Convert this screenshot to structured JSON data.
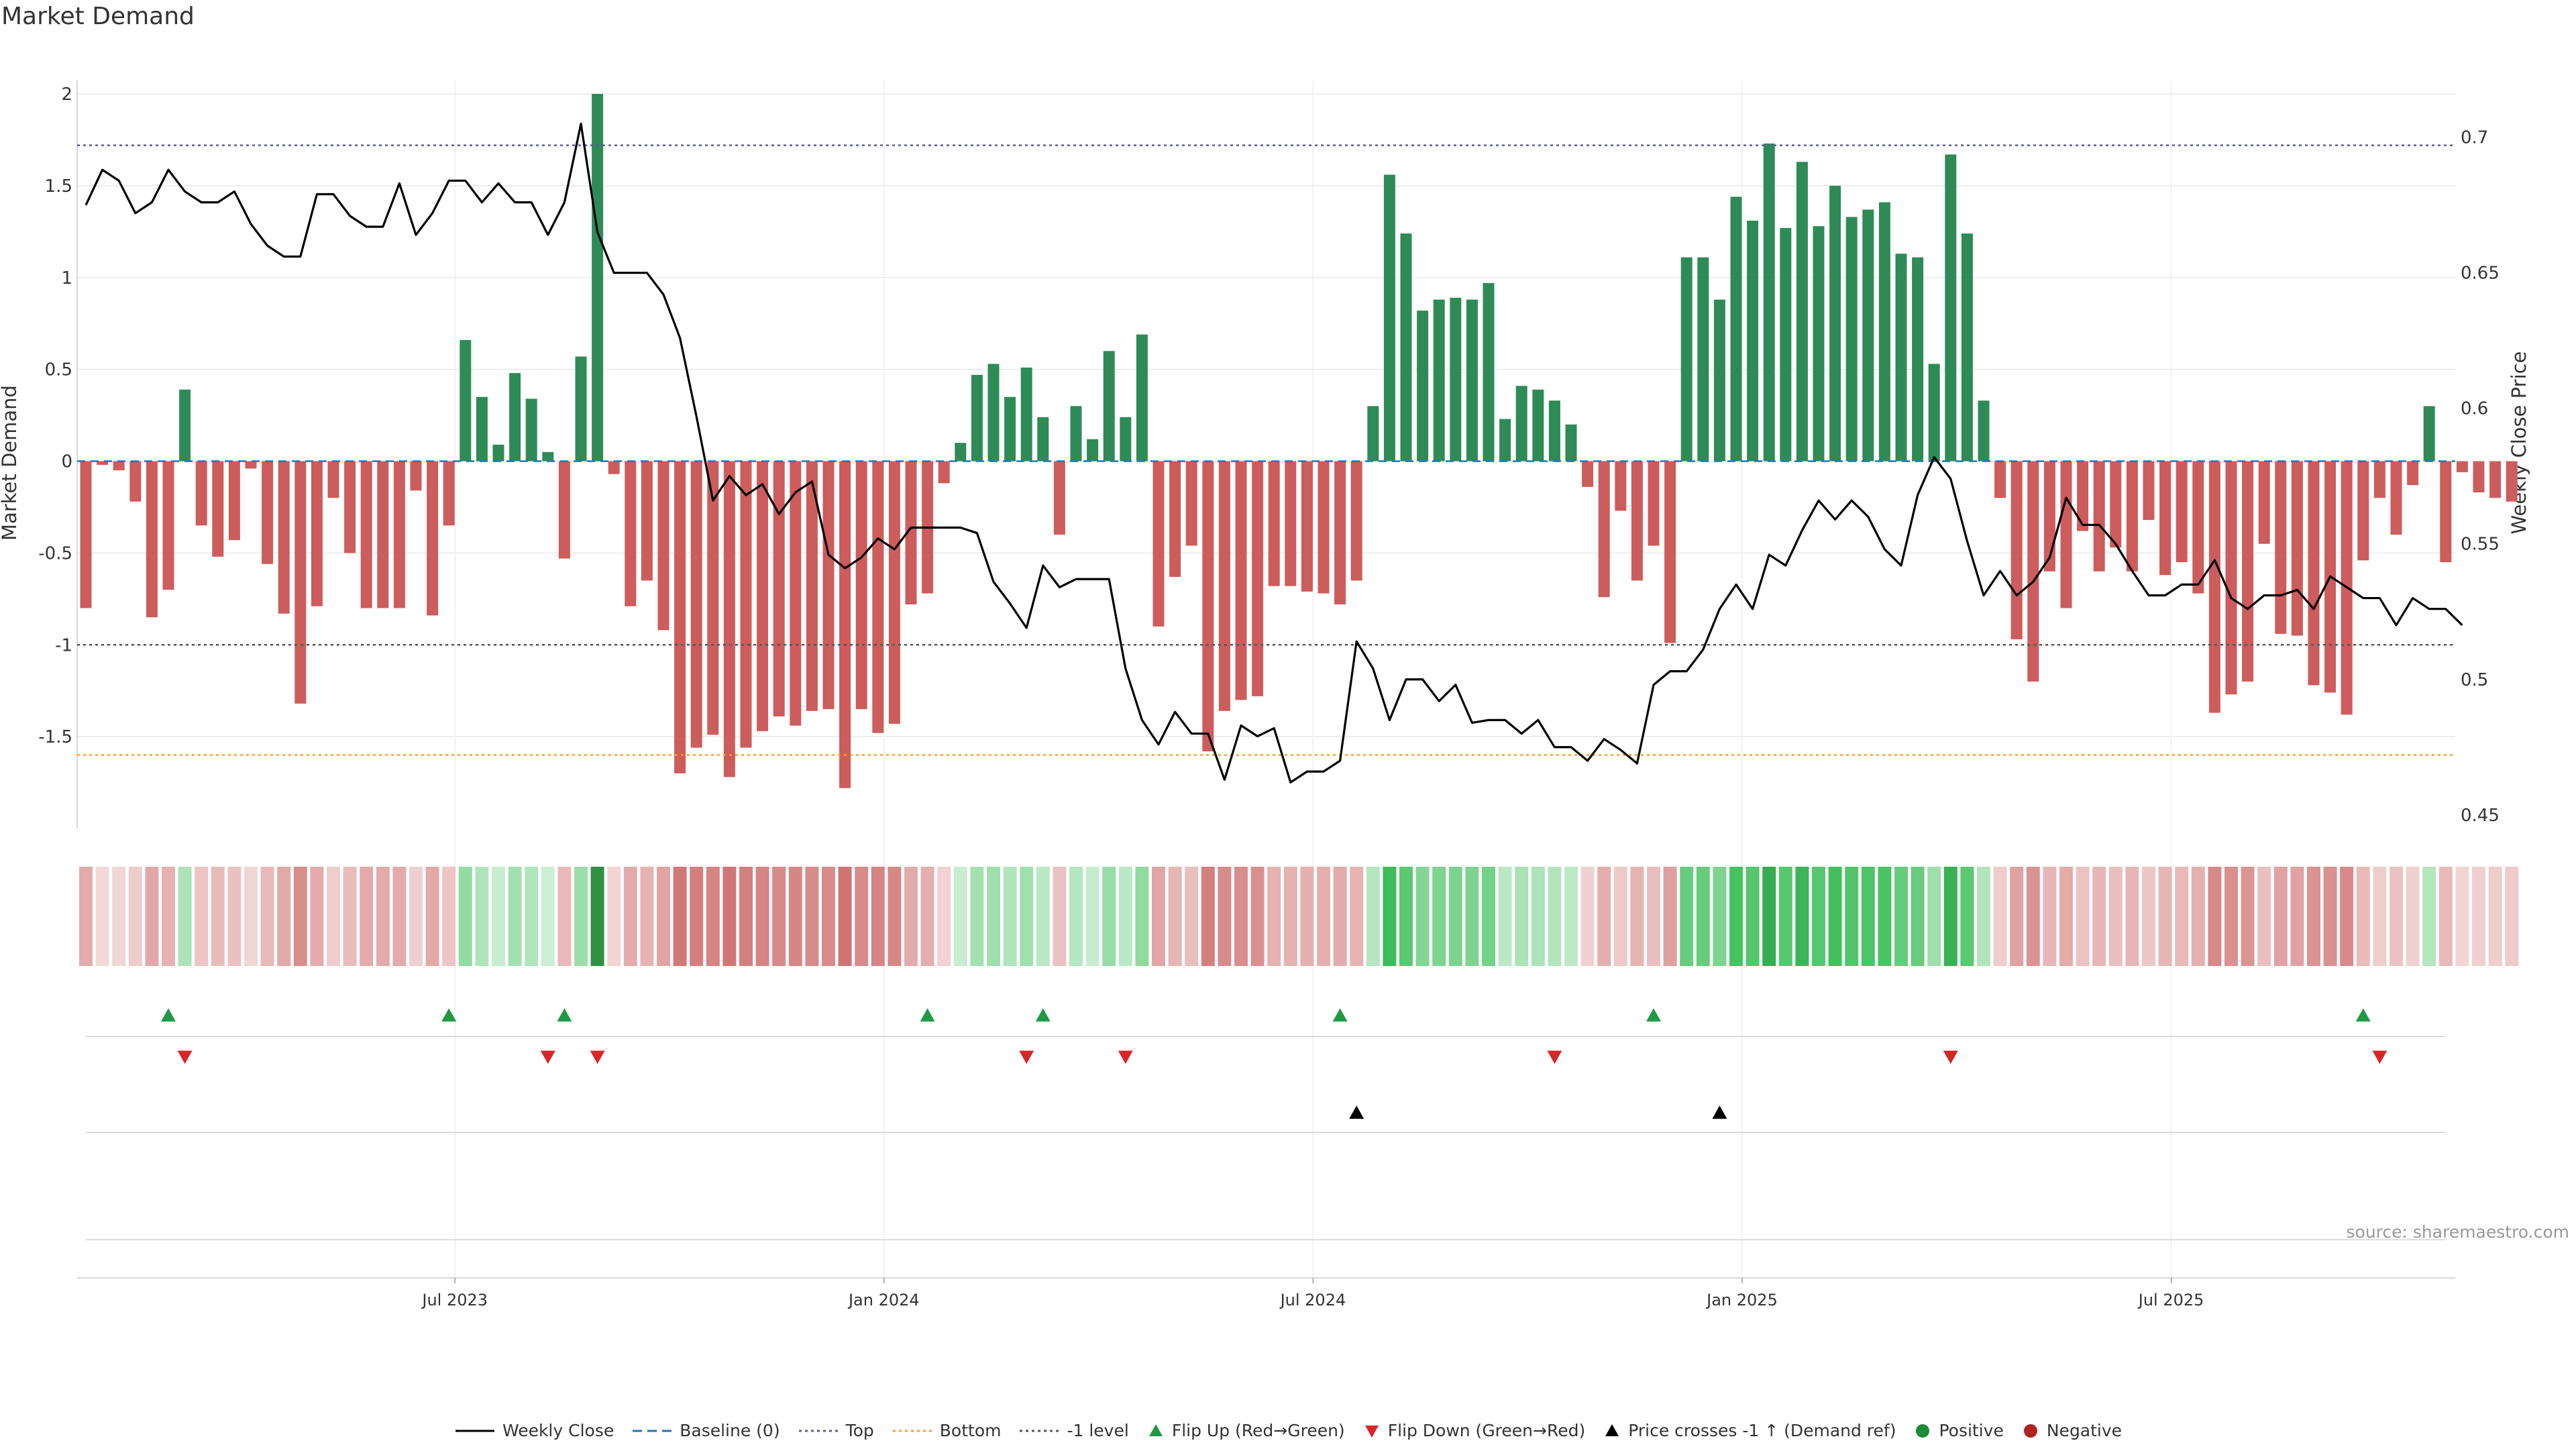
{
  "chart_data": {
    "type": "bar",
    "title": "Market Demand",
    "ylabel": "Market Demand",
    "y2label": "Weekly Close Price",
    "ylim": [
      -2.0,
      2.0
    ],
    "y2lim": [
      0.445,
      0.716
    ],
    "yticks": [
      "2",
      "1.5",
      "1",
      "0.5",
      "0",
      "-0.5",
      "-1",
      "-1.5"
    ],
    "y2ticks": [
      "0.7",
      "0.65",
      "0.6",
      "0.55",
      "0.5",
      "0.45"
    ],
    "x_ticks": [
      {
        "label": "Jul 2023",
        "index": 22
      },
      {
        "label": "Jan 2024",
        "index": 48
      },
      {
        "label": "Jul 2024",
        "index": 74
      },
      {
        "label": "Jan 2025",
        "index": 100
      },
      {
        "label": "Jul 2025",
        "index": 126
      }
    ],
    "reference_lines": {
      "baseline": 0,
      "top": 1.72,
      "bottom": -1.6,
      "minus_one": -1
    },
    "series": [
      {
        "name": "Market Demand",
        "values": [
          -0.8,
          -0.02,
          -0.05,
          -0.22,
          -0.85,
          -0.7,
          0.39,
          -0.35,
          -0.52,
          -0.43,
          -0.04,
          -0.56,
          -0.83,
          -1.32,
          -0.79,
          -0.2,
          -0.5,
          -0.8,
          -0.8,
          -0.8,
          -0.16,
          -0.84,
          -0.35,
          0.66,
          0.35,
          0.09,
          0.48,
          0.34,
          0.05,
          -0.53,
          0.57,
          2.0,
          -0.07,
          -0.79,
          -0.65,
          -0.92,
          -1.7,
          -1.56,
          -1.49,
          -1.72,
          -1.56,
          -1.47,
          -1.39,
          -1.44,
          -1.36,
          -1.35,
          -1.78,
          -1.35,
          -1.48,
          -1.43,
          -0.78,
          -0.72,
          -0.12,
          0.1,
          0.47,
          0.53,
          0.35,
          0.51,
          0.24,
          -0.4,
          0.3,
          0.12,
          0.6,
          0.24,
          0.69,
          -0.9,
          -0.63,
          -0.46,
          -1.58,
          -1.36,
          -1.3,
          -1.28,
          -0.68,
          -0.68,
          -0.71,
          -0.72,
          -0.78,
          -0.65,
          0.3,
          1.56,
          1.24,
          0.82,
          0.88,
          0.89,
          0.88,
          0.97,
          0.23,
          0.41,
          0.39,
          0.33,
          0.2,
          -0.14,
          -0.74,
          -0.27,
          -0.65,
          -0.46,
          -0.99,
          1.11,
          1.11,
          0.88,
          1.44,
          1.31,
          1.73,
          1.27,
          1.63,
          1.28,
          1.5,
          1.33,
          1.37,
          1.41,
          1.13,
          1.11,
          0.53,
          1.67,
          1.24,
          0.33,
          -0.2,
          -0.97,
          -1.2,
          -0.6,
          -0.8,
          -0.38,
          -0.6,
          -0.47,
          -0.6,
          -0.32,
          -0.62,
          -0.55,
          -0.72,
          -1.37,
          -1.27,
          -1.2,
          -0.45,
          -0.94,
          -0.95,
          -1.22,
          -1.26,
          -1.38,
          -0.54,
          -0.2,
          -0.4,
          -0.13,
          0.3,
          -0.55,
          -0.06,
          -0.17,
          -0.2,
          -0.22
        ]
      },
      {
        "name": "Weekly Close",
        "axis": "right",
        "values": [
          0.675,
          0.688,
          0.684,
          0.672,
          0.676,
          0.688,
          0.68,
          0.676,
          0.676,
          0.68,
          0.668,
          0.66,
          0.656,
          0.656,
          0.679,
          0.679,
          0.671,
          0.667,
          0.667,
          0.683,
          0.664,
          0.672,
          0.684,
          0.684,
          0.676,
          0.683,
          0.676,
          0.676,
          0.664,
          0.676,
          0.705,
          0.665,
          0.65,
          0.65,
          0.65,
          0.642,
          0.626,
          0.597,
          0.566,
          0.575,
          0.568,
          0.572,
          0.561,
          0.569,
          0.573,
          0.546,
          0.541,
          0.545,
          0.552,
          0.548,
          0.556,
          0.556,
          0.556,
          0.556,
          0.554,
          0.536,
          0.528,
          0.519,
          0.542,
          0.534,
          0.537,
          0.537,
          0.537,
          0.504,
          0.485,
          0.476,
          0.488,
          0.48,
          0.48,
          0.463,
          0.483,
          0.479,
          0.482,
          0.462,
          0.466,
          0.466,
          0.47,
          0.514,
          0.504,
          0.485,
          0.5,
          0.5,
          0.492,
          0.498,
          0.484,
          0.485,
          0.485,
          0.48,
          0.485,
          0.475,
          0.475,
          0.47,
          0.478,
          0.474,
          0.469,
          0.498,
          0.503,
          0.503,
          0.511,
          0.526,
          0.535,
          0.526,
          0.546,
          0.542,
          0.555,
          0.566,
          0.559,
          0.566,
          0.56,
          0.548,
          0.542,
          0.568,
          0.582,
          0.574,
          0.551,
          0.531,
          0.54,
          0.531,
          0.536,
          0.545,
          0.567,
          0.557,
          0.557,
          0.55,
          0.54,
          0.531,
          0.531,
          0.535,
          0.535,
          0.544,
          0.53,
          0.526,
          0.531,
          0.531,
          0.533,
          0.526,
          0.538,
          0.534,
          0.53,
          0.53,
          0.52,
          0.53,
          0.526,
          0.526,
          0.52
        ]
      }
    ],
    "flip_up_indices": [
      5,
      22,
      29,
      51,
      58,
      76,
      95,
      138
    ],
    "flip_down_indices": [
      6,
      28,
      31,
      57,
      63,
      89,
      113,
      139
    ],
    "price_cross_indices": [
      77,
      99
    ]
  },
  "source_label": "source: sharemaestro.com",
  "legend": [
    {
      "label": "Weekly Close",
      "kind": "line",
      "color": "#000000"
    },
    {
      "label": "Baseline (0)",
      "kind": "dash",
      "color": "#1f77b4"
    },
    {
      "label": "Top",
      "kind": "dot",
      "color": "#5b5b9e"
    },
    {
      "label": "Bottom",
      "kind": "dot",
      "color": "#ff9f1c"
    },
    {
      "label": "-1 level",
      "kind": "dot",
      "color": "#555555"
    },
    {
      "label": "Flip Up (Red→Green)",
      "kind": "tri-up",
      "color": "#1f9a43"
    },
    {
      "label": "Flip Down (Green→Red)",
      "kind": "tri-down",
      "color": "#d62728"
    },
    {
      "label": "Price crosses -1 ↑ (Demand ref)",
      "kind": "tri-up",
      "color": "#000000"
    },
    {
      "label": "Positive",
      "kind": "circle",
      "color": "#1f8a3a"
    },
    {
      "label": "Negative",
      "kind": "circle",
      "color": "#b22222"
    }
  ],
  "colors": {
    "positive": "#2e8b57",
    "negative": "#cd5c5c",
    "grid": "#e8e8e8"
  }
}
